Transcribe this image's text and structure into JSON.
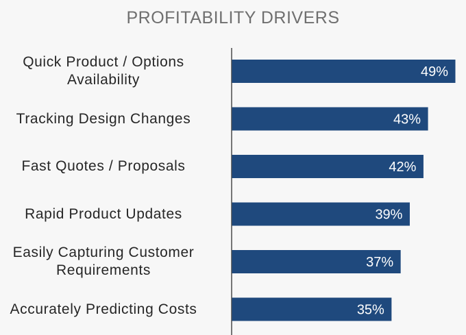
{
  "chart_data": {
    "type": "bar",
    "orientation": "horizontal",
    "title": "PROFITABILITY DRIVERS",
    "categories": [
      [
        "Quick Product / Options",
        "Availability"
      ],
      [
        "Tracking Design Changes"
      ],
      [
        "Fast Quotes / Proposals"
      ],
      [
        "Rapid Product Updates"
      ],
      [
        "Easily Capturing Customer",
        "Requirements"
      ],
      [
        "Accurately Predicting Costs"
      ]
    ],
    "values": [
      49,
      43,
      42,
      39,
      37,
      35
    ],
    "value_labels": [
      "49%",
      "43%",
      "42%",
      "39%",
      "37%",
      "35%"
    ],
    "xlabel": "",
    "ylabel": "",
    "xlim": [
      0,
      49
    ],
    "grid": false,
    "legend": "none",
    "colors": {
      "bar": "#1f497d",
      "bar_label": "#ffffff",
      "axis": "#4a4a4a"
    }
  }
}
